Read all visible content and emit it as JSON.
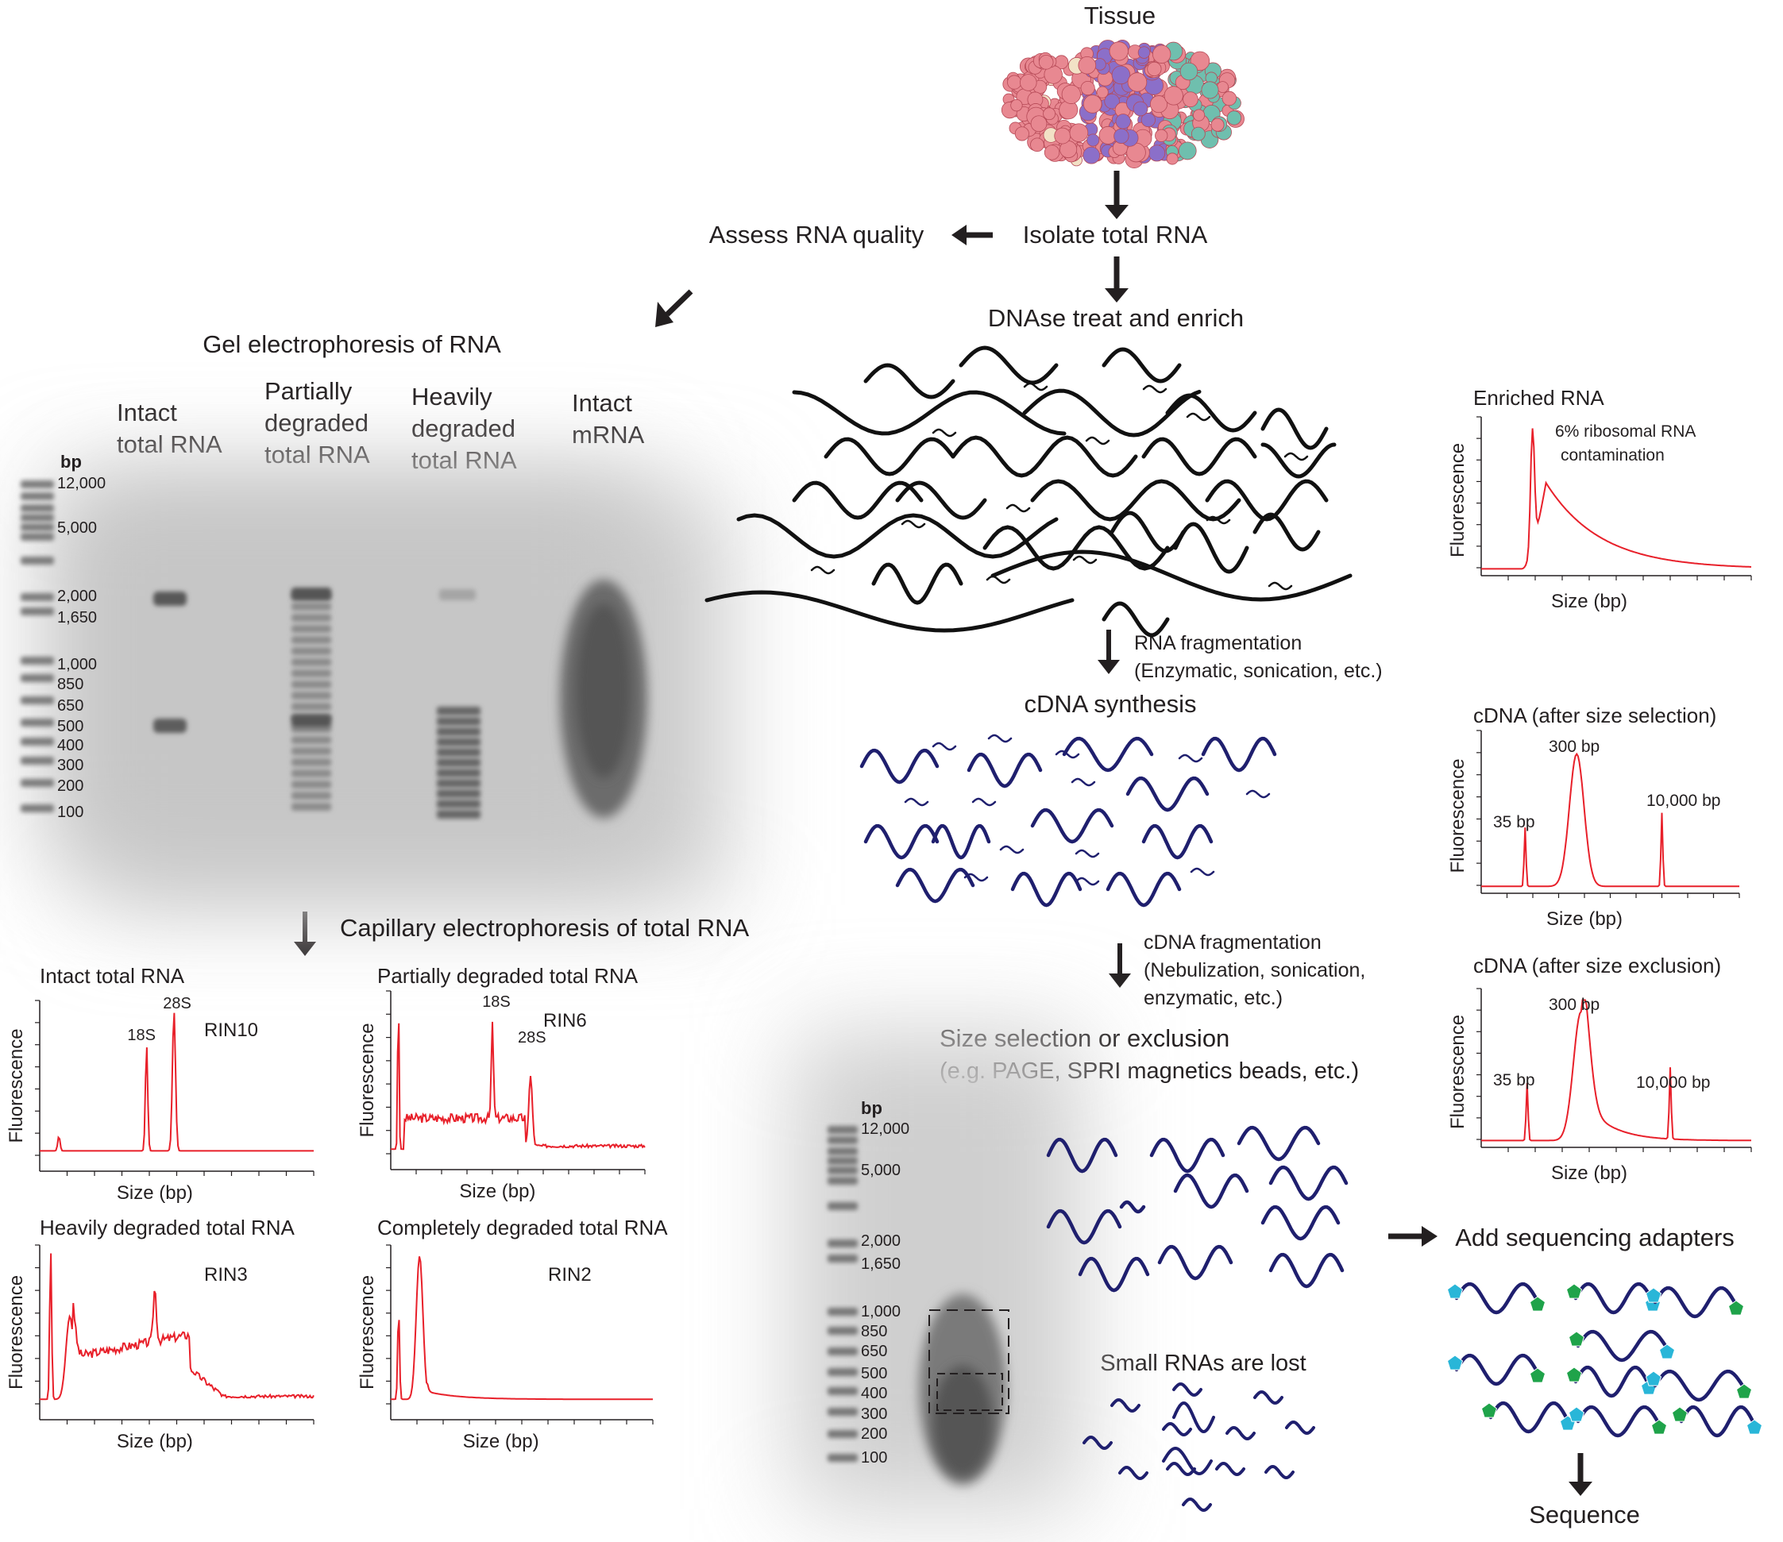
{
  "workflow": {
    "tissue": "Tissue",
    "isolate": "Isolate total RNA",
    "assess": "Assess RNA quality",
    "dnase": "DNAse treat and enrich",
    "rna_frag_1": "RNA fragmentation",
    "rna_frag_2": "(Enzymatic, sonication, etc.)",
    "cdna_synthesis": "cDNA synthesis",
    "cdna_frag_1": "cDNA fragmentation",
    "cdna_frag_2": "(Nebulization, sonication,",
    "cdna_frag_3": "enzymatic, etc.)",
    "size_sel_1": "Size selection or exclusion",
    "size_sel_2": "(e.g. PAGE, SPRI magnetics beads, etc.)",
    "small_rnas_lost": "Small RNAs are lost",
    "add_adapters": "Add sequencing adapters",
    "sequence": "Sequence"
  },
  "gel": {
    "title": "Gel electrophoresis of RNA",
    "bp_label": "bp",
    "ladder": [
      "12,000",
      "5,000",
      "2,000",
      "1,650",
      "1,000",
      "850",
      "650",
      "500",
      "400",
      "300",
      "200",
      "100"
    ],
    "lanes": [
      [
        "Intact",
        "total RNA"
      ],
      [
        "Partially",
        "degraded",
        "total RNA"
      ],
      [
        "Heavily",
        "degraded",
        "total RNA"
      ],
      [
        "Intact",
        "mRNA"
      ]
    ]
  },
  "capillary": {
    "title": "Capillary electrophoresis of total RNA",
    "panels": [
      {
        "title": "Intact total RNA",
        "rin": "RIN10",
        "peak1": "18S",
        "peak2": "28S"
      },
      {
        "title": "Partially degraded total RNA",
        "rin": "RIN6",
        "peak1": "18S",
        "peak2": "28S"
      },
      {
        "title": "Heavily degraded total RNA",
        "rin": "RIN3"
      },
      {
        "title": "Completely degraded total RNA",
        "rin": "RIN2"
      }
    ],
    "ylabel": "Fluorescence",
    "xlabel": "Size (bp)"
  },
  "right_plots": [
    {
      "title": "Enriched RNA",
      "note_1": "6% ribosomal RNA",
      "note_2": "contamination"
    },
    {
      "title": "cDNA (after size selection)",
      "a": "35 bp",
      "b": "300 bp",
      "c": "10,000 bp"
    },
    {
      "title": "cDNA (after size exclusion)",
      "a": "35 bp",
      "b": "300 bp",
      "c": "10,000 bp"
    }
  ],
  "size_gel": {
    "bp_label": "bp",
    "ladder": [
      "12,000",
      "5,000",
      "2,000",
      "1,650",
      "1,000",
      "850",
      "650",
      "500",
      "400",
      "300",
      "200",
      "100"
    ]
  },
  "colors": {
    "trace": "#e8202a",
    "cdna": "#1f1f6e",
    "rna": "#111111",
    "adapter_green": "#1fa34a",
    "adapter_cyan": "#29b6d8"
  }
}
